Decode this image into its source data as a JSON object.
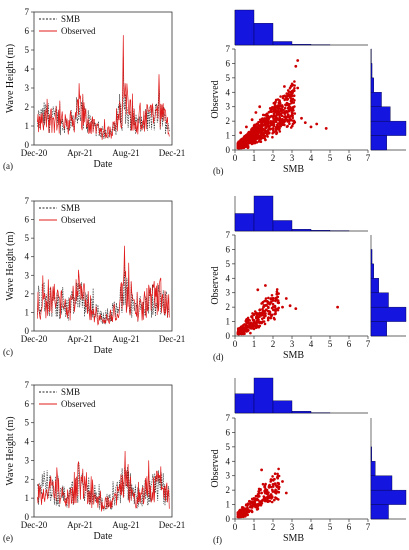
{
  "colors": {
    "smb": "#222222",
    "observed": "#e01b1b",
    "scatter": "#cc0000",
    "hist": "#1515e0"
  },
  "chart_data": [
    {
      "type": "line",
      "panel": "(a)",
      "xlabel": "Date",
      "ylabel": "Wave Height (m)",
      "x_ticks": [
        "Dec-20",
        "Apr-21",
        "Aug-21",
        "Dec-21"
      ],
      "x_range": [
        "2020-12-01",
        "2021-12-01"
      ],
      "ylim": [
        0,
        7
      ],
      "y_ticks": [
        0,
        1,
        2,
        3,
        4,
        5,
        6,
        7
      ],
      "legend": {
        "placement": "top-left",
        "entries": [
          "SMB",
          "Observed"
        ]
      },
      "series": [
        {
          "name": "SMB",
          "style": "dashed",
          "x": [
            "2020-12-10",
            "2021-01-01",
            "2021-02-01",
            "2021-03-01",
            "2021-04-01",
            "2021-05-01",
            "2021-06-01",
            "2021-07-01",
            "2021-08-01",
            "2021-09-01",
            "2021-10-01",
            "2021-11-01",
            "2021-11-25"
          ],
          "values": [
            1.2,
            1.5,
            1.2,
            1.0,
            1.6,
            1.1,
            0.6,
            0.9,
            2.0,
            1.0,
            1.3,
            1.5,
            1.0
          ]
        },
        {
          "name": "Observed",
          "style": "solid",
          "x": [
            "2020-12-10",
            "2021-01-01",
            "2021-02-01",
            "2021-03-01",
            "2021-04-01",
            "2021-05-01",
            "2021-06-01",
            "2021-07-01",
            "2021-08-01",
            "2021-09-01",
            "2021-10-01",
            "2021-11-01",
            "2021-11-25"
          ],
          "values": [
            1.0,
            1.3,
            1.4,
            0.9,
            1.8,
            1.0,
            0.5,
            0.8,
            2.2,
            0.9,
            1.4,
            1.6,
            0.9
          ]
        }
      ],
      "peaks": [
        {
          "x": "2021-07-25",
          "y": 6.2
        },
        {
          "x": "2021-10-28",
          "y": 4.3
        },
        {
          "x": "2021-01-05",
          "y": 2.8
        }
      ]
    },
    {
      "type": "scatter",
      "panel": "(b)",
      "xlabel": "SMB",
      "ylabel": "Observed",
      "xlim": [
        0,
        7
      ],
      "ylim": [
        0,
        7
      ],
      "x_ticks": [
        0,
        1,
        2,
        3,
        4,
        5,
        6,
        7
      ],
      "y_ticks": [
        0,
        1,
        2,
        3,
        4,
        5,
        6,
        7
      ],
      "points": [
        [
          0.2,
          0.4
        ],
        [
          0.4,
          0.6
        ],
        [
          0.5,
          0.9
        ],
        [
          0.7,
          1.1
        ],
        [
          0.8,
          0.7
        ],
        [
          1.0,
          1.4
        ],
        [
          1.1,
          1.0
        ],
        [
          1.2,
          1.8
        ],
        [
          1.3,
          0.8
        ],
        [
          1.4,
          1.5
        ],
        [
          1.5,
          2.0
        ],
        [
          1.6,
          1.2
        ],
        [
          1.7,
          2.4
        ],
        [
          1.8,
          1.6
        ],
        [
          1.9,
          2.8
        ],
        [
          2.0,
          1.9
        ],
        [
          2.1,
          3.2
        ],
        [
          2.2,
          2.2
        ],
        [
          2.3,
          2.6
        ],
        [
          2.4,
          1.8
        ],
        [
          2.5,
          3.0
        ],
        [
          2.6,
          2.3
        ],
        [
          2.7,
          3.6
        ],
        [
          2.8,
          2.9
        ],
        [
          2.9,
          2.1
        ],
        [
          3.0,
          2.6
        ],
        [
          3.1,
          2.0
        ],
        [
          3.2,
          5.8
        ],
        [
          3.3,
          6.2
        ],
        [
          3.5,
          2.2
        ],
        [
          3.7,
          1.9
        ],
        [
          4.0,
          1.6
        ],
        [
          4.3,
          1.8
        ],
        [
          4.8,
          1.5
        ],
        [
          0.3,
          1.2
        ],
        [
          0.6,
          1.6
        ],
        [
          0.9,
          2.1
        ],
        [
          1.1,
          2.6
        ],
        [
          1.3,
          3.0
        ],
        [
          2.6,
          4.4
        ],
        [
          3.3,
          4.3
        ],
        [
          0.4,
          0.2
        ],
        [
          0.9,
          0.5
        ],
        [
          1.6,
          0.7
        ],
        [
          2.2,
          1.2
        ],
        [
          1.0,
          0.6
        ]
      ],
      "hist_x": [
        1.0,
        0.62,
        0.1,
        0.02,
        0.01,
        0.0,
        0.0
      ],
      "hist_y": [
        0.45,
        1.0,
        0.55,
        0.3,
        0.08,
        0.03,
        0.01
      ]
    },
    {
      "type": "line",
      "panel": "(c)",
      "xlabel": "Date",
      "ylabel": "Wave Height (m)",
      "x_ticks": [
        "Dec-20",
        "Apr-21",
        "Aug-21",
        "Dec-21"
      ],
      "x_range": [
        "2020-12-01",
        "2021-12-01"
      ],
      "ylim": [
        0,
        7
      ],
      "y_ticks": [
        0,
        1,
        2,
        3,
        4,
        5,
        6,
        7
      ],
      "legend": {
        "placement": "top-left",
        "entries": [
          "SMB",
          "Observed"
        ]
      },
      "series": [
        {
          "name": "SMB",
          "style": "dashed",
          "x": [
            "2020-12-10",
            "2021-01-01",
            "2021-02-01",
            "2021-03-01",
            "2021-04-01",
            "2021-05-01",
            "2021-06-01",
            "2021-07-01",
            "2021-08-01",
            "2021-09-01",
            "2021-10-01",
            "2021-11-01",
            "2021-11-25"
          ],
          "values": [
            1.4,
            1.7,
            1.3,
            1.1,
            1.8,
            1.2,
            0.7,
            1.0,
            1.9,
            1.1,
            1.5,
            1.7,
            1.1
          ]
        },
        {
          "name": "Observed",
          "style": "solid",
          "x": [
            "2020-12-10",
            "2021-01-01",
            "2021-02-01",
            "2021-03-01",
            "2021-04-01",
            "2021-05-01",
            "2021-06-01",
            "2021-07-01",
            "2021-08-01",
            "2021-09-01",
            "2021-10-01",
            "2021-11-01",
            "2021-11-25"
          ],
          "values": [
            1.3,
            1.5,
            1.5,
            1.0,
            2.0,
            1.1,
            0.5,
            0.9,
            2.1,
            1.0,
            1.6,
            1.8,
            1.0
          ]
        }
      ],
      "peaks": [
        {
          "x": "2021-07-28",
          "y": 5.3
        },
        {
          "x": "2021-10-30",
          "y": 3.6
        },
        {
          "x": "2021-01-20",
          "y": 3.0
        }
      ]
    },
    {
      "type": "scatter",
      "panel": "(d)",
      "xlabel": "SMB",
      "ylabel": "Observed",
      "xlim": [
        0,
        7
      ],
      "ylim": [
        0,
        7
      ],
      "x_ticks": [
        0,
        1,
        2,
        3,
        4,
        5,
        6,
        7
      ],
      "y_ticks": [
        0,
        1,
        2,
        3,
        4,
        5,
        6,
        7
      ],
      "points": [
        [
          0.3,
          0.5
        ],
        [
          0.5,
          0.8
        ],
        [
          0.6,
          1.1
        ],
        [
          0.8,
          0.6
        ],
        [
          0.9,
          1.3
        ],
        [
          1.0,
          0.9
        ],
        [
          1.1,
          1.6
        ],
        [
          1.2,
          1.2
        ],
        [
          1.3,
          1.8
        ],
        [
          1.4,
          0.9
        ],
        [
          1.5,
          2.0
        ],
        [
          1.6,
          1.4
        ],
        [
          1.7,
          2.4
        ],
        [
          1.8,
          1.7
        ],
        [
          1.9,
          2.6
        ],
        [
          2.0,
          2.2
        ],
        [
          2.1,
          1.8
        ],
        [
          2.2,
          2.9
        ],
        [
          2.3,
          2.3
        ],
        [
          2.5,
          2.0
        ],
        [
          2.7,
          2.6
        ],
        [
          2.9,
          2.1
        ],
        [
          3.2,
          1.9
        ],
        [
          1.2,
          3.2
        ],
        [
          1.6,
          3.5
        ],
        [
          5.4,
          2.0
        ],
        [
          0.4,
          0.3
        ],
        [
          0.7,
          0.4
        ],
        [
          1.0,
          0.5
        ],
        [
          1.3,
          0.7
        ]
      ],
      "hist_x": [
        0.5,
        1.0,
        0.3,
        0.05,
        0.02,
        0.01,
        0.0
      ],
      "hist_y": [
        0.45,
        1.0,
        0.5,
        0.22,
        0.08,
        0.03,
        0.0
      ]
    },
    {
      "type": "line",
      "panel": "(e)",
      "xlabel": "Date",
      "ylabel": "Wave Height (m)",
      "x_ticks": [
        "Dec-20",
        "Apr-21",
        "Aug-21",
        "Dec-21"
      ],
      "x_range": [
        "2020-12-01",
        "2021-12-01"
      ],
      "ylim": [
        0,
        7
      ],
      "y_ticks": [
        0,
        1,
        2,
        3,
        4,
        5,
        6,
        7
      ],
      "legend": {
        "placement": "top-left",
        "entries": [
          "SMB",
          "Observed"
        ]
      },
      "series": [
        {
          "name": "SMB",
          "style": "dashed",
          "x": [
            "2020-12-10",
            "2021-01-01",
            "2021-02-01",
            "2021-03-01",
            "2021-04-01",
            "2021-05-01",
            "2021-06-01",
            "2021-07-01",
            "2021-08-01",
            "2021-09-01",
            "2021-10-01",
            "2021-11-01",
            "2021-11-25"
          ],
          "values": [
            1.3,
            1.6,
            1.2,
            1.0,
            1.7,
            1.1,
            0.7,
            0.9,
            1.8,
            1.0,
            1.4,
            1.6,
            1.0
          ]
        },
        {
          "name": "Observed",
          "style": "solid",
          "x": [
            "2020-12-10",
            "2021-01-01",
            "2021-02-01",
            "2021-03-01",
            "2021-04-01",
            "2021-05-01",
            "2021-06-01",
            "2021-07-01",
            "2021-08-01",
            "2021-09-01",
            "2021-10-01",
            "2021-11-01",
            "2021-11-25"
          ],
          "values": [
            1.2,
            1.4,
            1.4,
            0.9,
            1.9,
            1.0,
            0.6,
            0.8,
            2.0,
            0.9,
            1.5,
            1.7,
            0.9
          ]
        }
      ],
      "peaks": [
        {
          "x": "2021-07-30",
          "y": 3.5
        },
        {
          "x": "2021-11-01",
          "y": 3.0
        },
        {
          "x": "2021-04-05",
          "y": 2.9
        }
      ]
    },
    {
      "type": "scatter",
      "panel": "(f)",
      "xlabel": "SMB",
      "ylabel": "Observed",
      "xlim": [
        0,
        7
      ],
      "ylim": [
        0,
        7
      ],
      "x_ticks": [
        0,
        1,
        2,
        3,
        4,
        5,
        6,
        7
      ],
      "y_ticks": [
        0,
        1,
        2,
        3,
        4,
        5,
        6,
        7
      ],
      "points": [
        [
          0.3,
          0.5
        ],
        [
          0.5,
          0.7
        ],
        [
          0.6,
          1.0
        ],
        [
          0.7,
          0.6
        ],
        [
          0.8,
          1.2
        ],
        [
          0.9,
          0.8
        ],
        [
          1.0,
          1.4
        ],
        [
          1.1,
          1.0
        ],
        [
          1.2,
          1.6
        ],
        [
          1.3,
          1.2
        ],
        [
          1.4,
          1.8
        ],
        [
          1.5,
          1.3
        ],
        [
          1.6,
          2.0
        ],
        [
          1.7,
          1.5
        ],
        [
          1.8,
          2.2
        ],
        [
          1.9,
          1.7
        ],
        [
          2.0,
          2.4
        ],
        [
          2.1,
          1.9
        ],
        [
          2.3,
          2.1
        ],
        [
          2.5,
          2.6
        ],
        [
          2.7,
          1.8
        ],
        [
          1.4,
          3.4
        ],
        [
          0.4,
          0.3
        ],
        [
          0.9,
          0.5
        ],
        [
          1.2,
          0.7
        ]
      ],
      "hist_x": [
        0.55,
        1.0,
        0.35,
        0.05,
        0.01,
        0.0,
        0.0
      ],
      "hist_y": [
        0.5,
        1.0,
        0.6,
        0.12,
        0.02,
        0.0,
        0.0
      ]
    }
  ]
}
